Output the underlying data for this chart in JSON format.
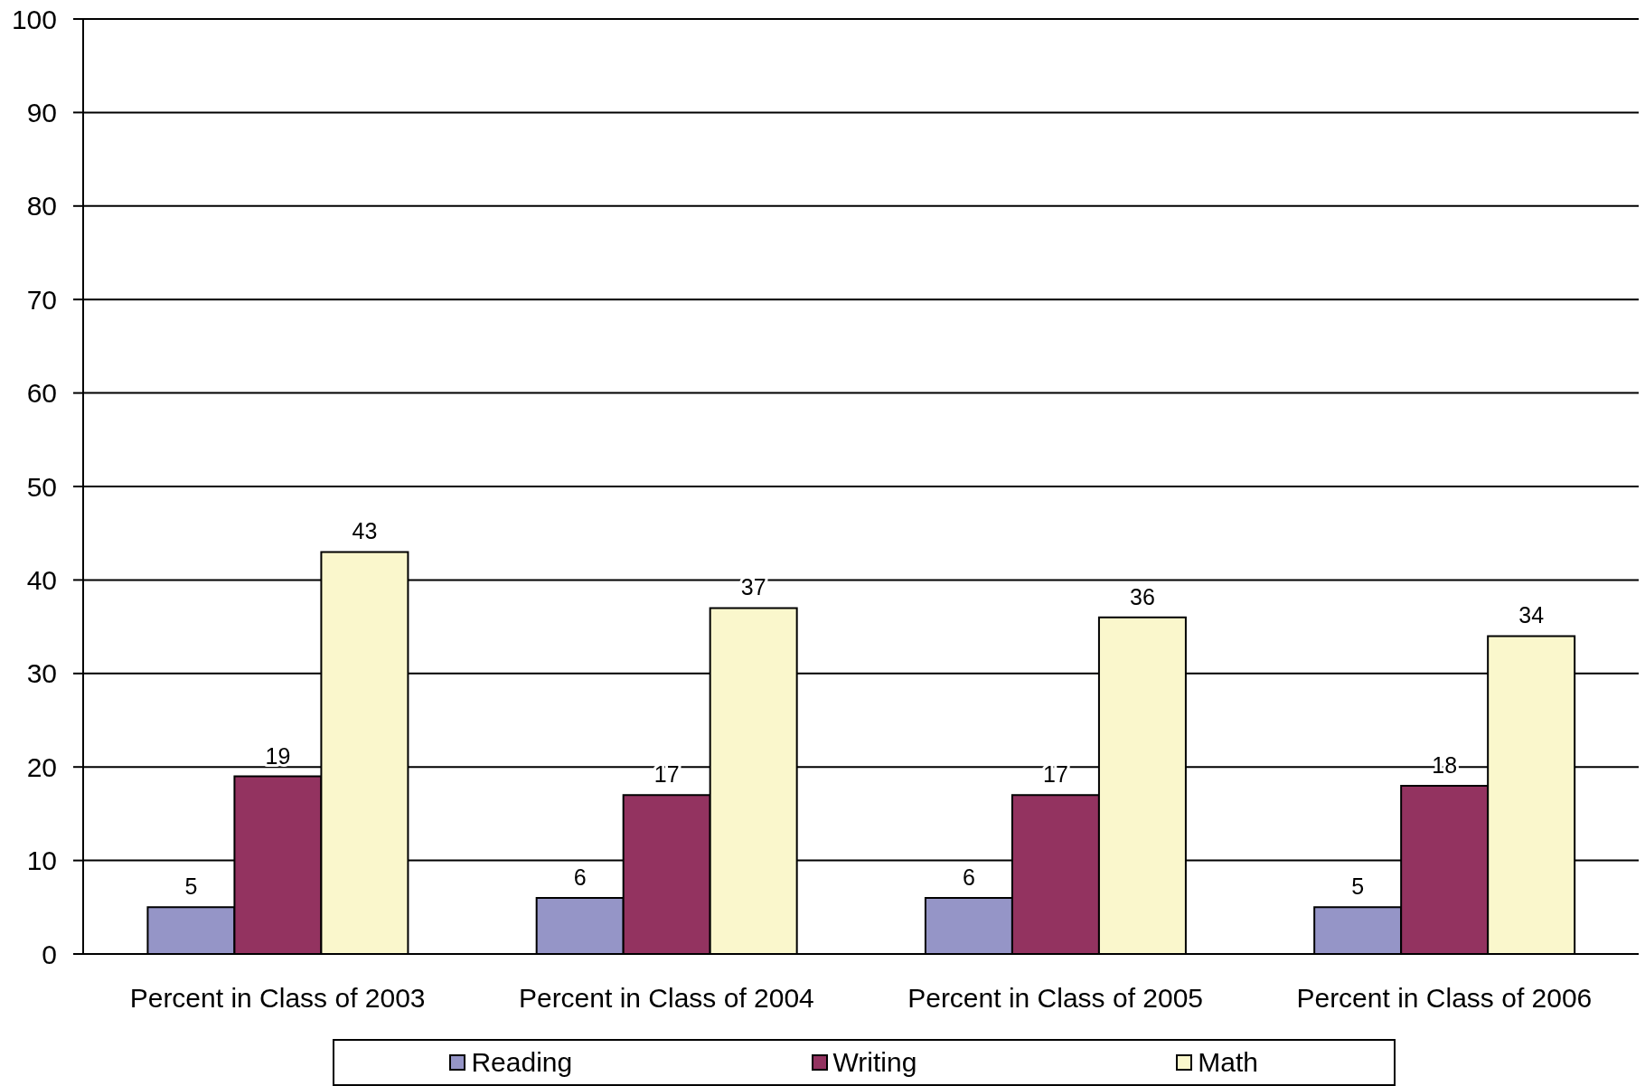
{
  "chart_data": {
    "type": "bar",
    "categories": [
      "Percent in Class of 2003",
      "Percent in Class of 2004",
      "Percent in Class of 2005",
      "Percent in Class of 2006"
    ],
    "series": [
      {
        "name": "Reading",
        "color": "#9595c7",
        "values": [
          5,
          6,
          6,
          5
        ]
      },
      {
        "name": "Writing",
        "color": "#933360",
        "values": [
          19,
          17,
          17,
          18
        ]
      },
      {
        "name": "Math",
        "color": "#faf7cc",
        "values": [
          43,
          37,
          36,
          34
        ]
      }
    ],
    "ylim": [
      0,
      100
    ],
    "yticks": [
      0,
      10,
      20,
      30,
      40,
      50,
      60,
      70,
      80,
      90,
      100
    ],
    "grid": "y",
    "legend": "bottom",
    "data_labels": true
  }
}
